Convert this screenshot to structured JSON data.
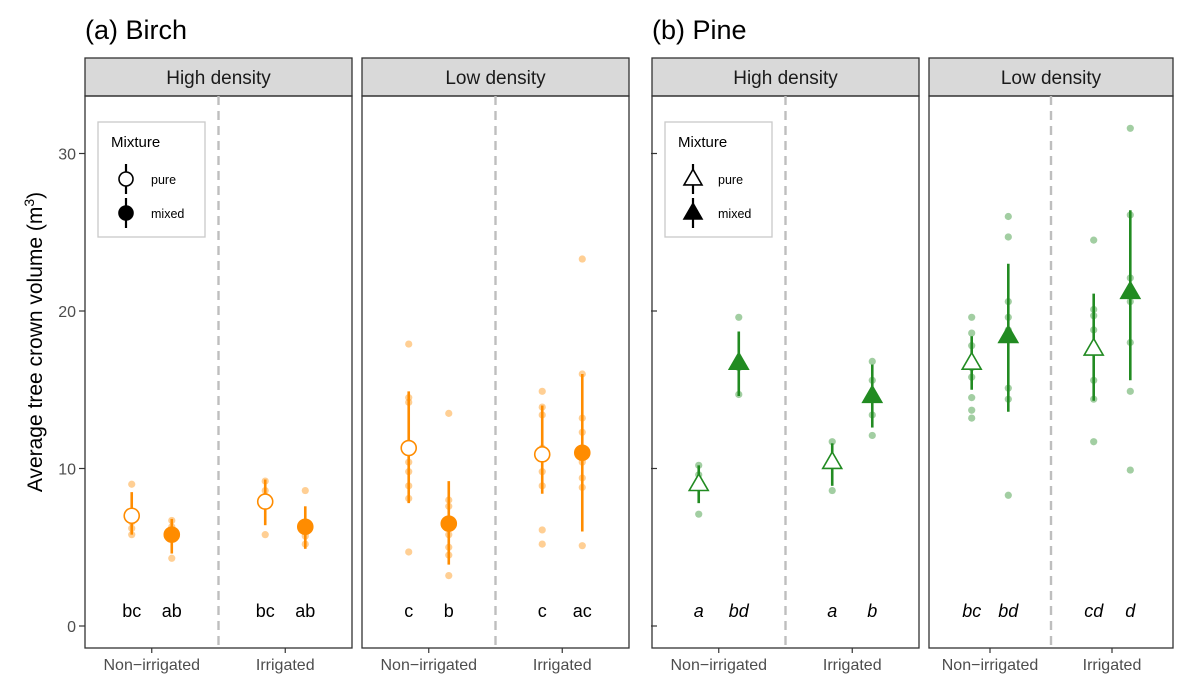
{
  "y_axis_label": "Average tree crown volume (m",
  "y_axis_label_sup": "3",
  "y_axis_label_close": ")",
  "x_levels": [
    "Non−irrigated",
    "Irrigated"
  ],
  "colors": {
    "birch": "#FF8C00",
    "pine": "#228B22",
    "strip_bg": "#D9D9D9",
    "divider": "#BEBEBE"
  },
  "chart_data": {
    "type": "scatter",
    "ylim": [
      0,
      34
    ],
    "yticks": [
      0,
      10,
      20,
      30
    ],
    "grid": false,
    "legend_placement": "top-left inside each species' high density panel",
    "legend": {
      "title": "Mixture",
      "entries": [
        "pure",
        "mixed"
      ]
    },
    "species": [
      {
        "title": "(a) Birch",
        "color_key": "birch",
        "marker": "circle",
        "letter_style": "normal",
        "panels": [
          {
            "density": "High density",
            "groups": [
              {
                "irrigation": "Non−irrigated",
                "mixture": "pure",
                "mean": 7.0,
                "ci": [
                  5.8,
                  8.5
                ],
                "letter": "bc",
                "points": [
                  9.0,
                  6.6,
                  6.2,
                  5.8
                ]
              },
              {
                "irrigation": "Non−irrigated",
                "mixture": "mixed",
                "mean": 5.8,
                "ci": [
                  4.6,
                  6.8
                ],
                "letter": "ab",
                "points": [
                  6.7,
                  6.3,
                  5.9,
                  4.3
                ]
              },
              {
                "irrigation": "Irrigated",
                "mixture": "pure",
                "mean": 7.9,
                "ci": [
                  6.4,
                  9.3
                ],
                "letter": "bc",
                "points": [
                  9.2,
                  8.6,
                  5.8
                ]
              },
              {
                "irrigation": "Irrigated",
                "mixture": "mixed",
                "mean": 6.3,
                "ci": [
                  4.9,
                  7.6
                ],
                "letter": "ab",
                "points": [
                  8.6,
                  6.4,
                  5.7,
                  5.2
                ]
              }
            ]
          },
          {
            "density": "Low density",
            "groups": [
              {
                "irrigation": "Non−irrigated",
                "mixture": "pure",
                "mean": 11.3,
                "ci": [
                  7.8,
                  14.9
                ],
                "letter": "c",
                "points": [
                  17.9,
                  14.5,
                  14.2,
                  11.2,
                  10.4,
                  9.8,
                  8.9,
                  8.1,
                  4.7
                ]
              },
              {
                "irrigation": "Non−irrigated",
                "mixture": "mixed",
                "mean": 6.5,
                "ci": [
                  3.9,
                  9.2
                ],
                "letter": "b",
                "points": [
                  13.5,
                  8.0,
                  7.6,
                  5.8,
                  5.0,
                  4.5,
                  3.2
                ]
              },
              {
                "irrigation": "Irrigated",
                "mixture": "pure",
                "mean": 10.9,
                "ci": [
                  8.4,
                  14.0
                ],
                "letter": "c",
                "points": [
                  14.9,
                  13.9,
                  13.4,
                  11.3,
                  9.8,
                  8.9,
                  6.1,
                  5.2
                ]
              },
              {
                "irrigation": "Irrigated",
                "mixture": "mixed",
                "mean": 11.0,
                "ci": [
                  6.0,
                  16.0
                ],
                "letter": "ac",
                "points": [
                  23.3,
                  16.0,
                  13.2,
                  12.3,
                  10.4,
                  9.4,
                  8.8,
                  5.1
                ]
              }
            ]
          }
        ]
      },
      {
        "title": "(b) Pine",
        "color_key": "pine",
        "marker": "triangle",
        "letter_style": "italic",
        "panels": [
          {
            "density": "High density",
            "groups": [
              {
                "irrigation": "Non−irrigated",
                "mixture": "pure",
                "mean": 9.0,
                "ci": [
                  7.8,
                  10.2
                ],
                "letter": "a",
                "points": [
                  10.2,
                  9.6,
                  7.1
                ]
              },
              {
                "irrigation": "Non−irrigated",
                "mixture": "mixed",
                "mean": 16.7,
                "ci": [
                  14.6,
                  18.7
                ],
                "letter": "bd",
                "points": [
                  19.6,
                  16.4,
                  14.7
                ]
              },
              {
                "irrigation": "Irrigated",
                "mixture": "pure",
                "mean": 10.4,
                "ci": [
                  8.9,
                  11.6
                ],
                "letter": "a",
                "points": [
                  11.7,
                  10.6,
                  8.6
                ]
              },
              {
                "irrigation": "Irrigated",
                "mixture": "mixed",
                "mean": 14.6,
                "ci": [
                  12.6,
                  16.6
                ],
                "letter": "b",
                "points": [
                  16.8,
                  15.6,
                  13.4,
                  12.1
                ]
              }
            ]
          },
          {
            "density": "Low density",
            "groups": [
              {
                "irrigation": "Non−irrigated",
                "mixture": "pure",
                "mean": 16.7,
                "ci": [
                  15.0,
                  18.4
                ],
                "letter": "bc",
                "points": [
                  19.6,
                  18.6,
                  17.8,
                  16.4,
                  15.8,
                  14.5,
                  13.7,
                  13.2
                ]
              },
              {
                "irrigation": "Non−irrigated",
                "mixture": "mixed",
                "mean": 18.4,
                "ci": [
                  13.6,
                  23.0
                ],
                "letter": "bd",
                "points": [
                  26.0,
                  24.7,
                  20.6,
                  19.6,
                  18.8,
                  15.1,
                  14.4,
                  8.3
                ]
              },
              {
                "irrigation": "Irrigated",
                "mixture": "pure",
                "mean": 17.6,
                "ci": [
                  14.3,
                  21.1
                ],
                "letter": "cd",
                "points": [
                  24.5,
                  20.1,
                  19.7,
                  18.8,
                  17.6,
                  15.6,
                  14.4,
                  11.7
                ]
              },
              {
                "irrigation": "Irrigated",
                "mixture": "mixed",
                "mean": 21.2,
                "ci": [
                  15.6,
                  26.4
                ],
                "letter": "d",
                "points": [
                  31.6,
                  26.1,
                  22.1,
                  20.6,
                  18.0,
                  14.9,
                  9.9
                ]
              }
            ]
          }
        ]
      }
    ]
  }
}
